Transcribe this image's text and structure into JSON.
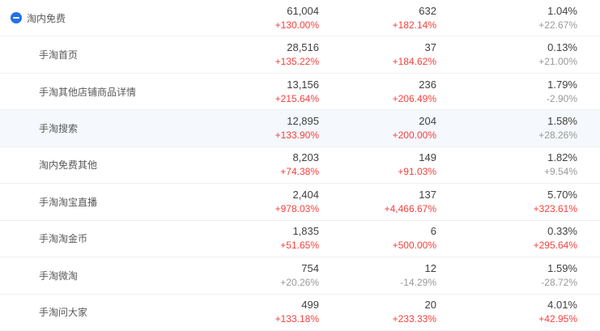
{
  "colors": {
    "up_red": "#f5413d",
    "neutral_gray": "#999999",
    "toggle_blue": "#2272e8",
    "highlight_row_bg": "#f5f8fc",
    "divider": "#eef0f4"
  },
  "table": {
    "rows": [
      {
        "label": "淘内免费",
        "level": "parent",
        "has_collapse_icon": true,
        "highlighted": false,
        "cols": [
          {
            "value": "61,004",
            "change": "+130.00%",
            "change_color": "red"
          },
          {
            "value": "632",
            "change": "+182.14%",
            "change_color": "red"
          },
          {
            "value": "1.04%",
            "change": "+22.67%",
            "change_color": "gray"
          }
        ]
      },
      {
        "label": "手淘首页",
        "level": "child",
        "has_collapse_icon": false,
        "highlighted": false,
        "cols": [
          {
            "value": "28,516",
            "change": "+135.22%",
            "change_color": "red"
          },
          {
            "value": "37",
            "change": "+184.62%",
            "change_color": "red"
          },
          {
            "value": "0.13%",
            "change": "+21.00%",
            "change_color": "gray"
          }
        ]
      },
      {
        "label": "手淘其他店铺商品详情",
        "level": "child",
        "has_collapse_icon": false,
        "highlighted": false,
        "cols": [
          {
            "value": "13,156",
            "change": "+215.64%",
            "change_color": "red"
          },
          {
            "value": "236",
            "change": "+206.49%",
            "change_color": "red"
          },
          {
            "value": "1.79%",
            "change": "-2.90%",
            "change_color": "gray"
          }
        ]
      },
      {
        "label": "手淘搜索",
        "level": "child",
        "has_collapse_icon": false,
        "highlighted": true,
        "cols": [
          {
            "value": "12,895",
            "change": "+133.90%",
            "change_color": "red"
          },
          {
            "value": "204",
            "change": "+200.00%",
            "change_color": "red"
          },
          {
            "value": "1.58%",
            "change": "+28.26%",
            "change_color": "gray"
          }
        ]
      },
      {
        "label": "淘内免费其他",
        "level": "child",
        "has_collapse_icon": false,
        "highlighted": false,
        "cols": [
          {
            "value": "8,203",
            "change": "+74.38%",
            "change_color": "red"
          },
          {
            "value": "149",
            "change": "+91.03%",
            "change_color": "red"
          },
          {
            "value": "1.82%",
            "change": "+9.54%",
            "change_color": "gray"
          }
        ]
      },
      {
        "label": "手淘淘宝直播",
        "level": "child",
        "has_collapse_icon": false,
        "highlighted": false,
        "cols": [
          {
            "value": "2,404",
            "change": "+978.03%",
            "change_color": "red"
          },
          {
            "value": "137",
            "change": "+4,466.67%",
            "change_color": "red"
          },
          {
            "value": "5.70%",
            "change": "+323.61%",
            "change_color": "red"
          }
        ]
      },
      {
        "label": "手淘淘金币",
        "level": "child",
        "has_collapse_icon": false,
        "highlighted": false,
        "cols": [
          {
            "value": "1,835",
            "change": "+51.65%",
            "change_color": "red"
          },
          {
            "value": "6",
            "change": "+500.00%",
            "change_color": "red"
          },
          {
            "value": "0.33%",
            "change": "+295.64%",
            "change_color": "red"
          }
        ]
      },
      {
        "label": "手淘微淘",
        "level": "child",
        "has_collapse_icon": false,
        "highlighted": false,
        "cols": [
          {
            "value": "754",
            "change": "+20.26%",
            "change_color": "gray"
          },
          {
            "value": "12",
            "change": "-14.29%",
            "change_color": "gray"
          },
          {
            "value": "1.59%",
            "change": "-28.72%",
            "change_color": "gray"
          }
        ]
      },
      {
        "label": "手淘问大家",
        "level": "child",
        "has_collapse_icon": false,
        "highlighted": false,
        "cols": [
          {
            "value": "499",
            "change": "+133.18%",
            "change_color": "red"
          },
          {
            "value": "20",
            "change": "+233.33%",
            "change_color": "red"
          },
          {
            "value": "4.01%",
            "change": "+42.95%",
            "change_color": "red"
          }
        ]
      }
    ]
  }
}
